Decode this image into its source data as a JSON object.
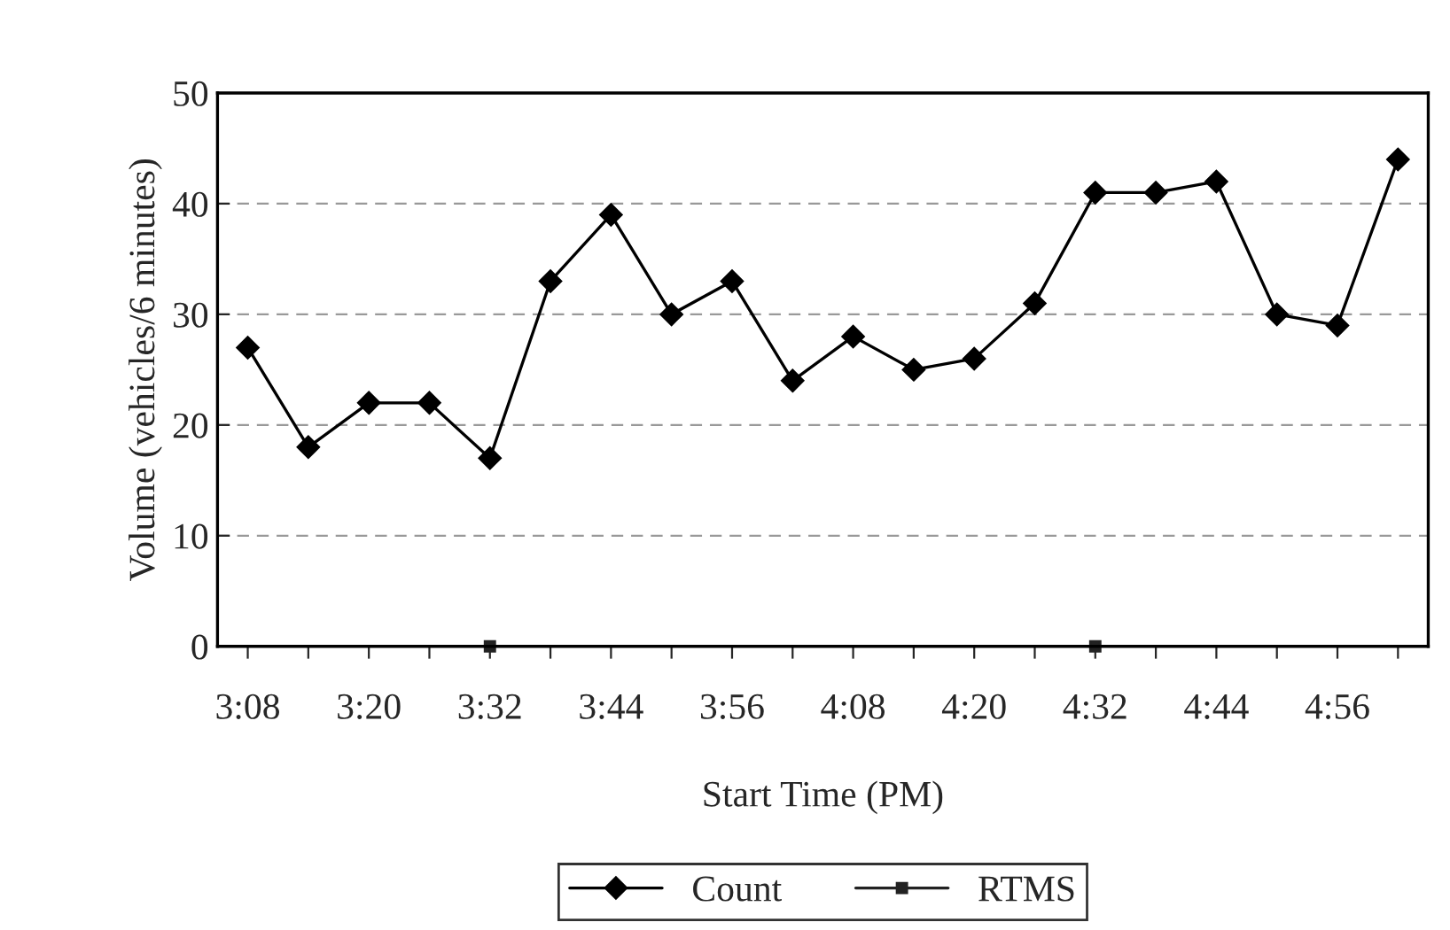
{
  "chart_data": {
    "type": "line",
    "xlabel": "Start Time (PM)",
    "ylabel": "Volume (vehicles/6 minutes)",
    "categories": [
      "3:08",
      null,
      "3:20",
      null,
      "3:32",
      null,
      "3:44",
      null,
      "3:56",
      null,
      "4:08",
      null,
      "4:20",
      null,
      "4:32",
      null,
      "4:44",
      null,
      "4:56",
      null
    ],
    "series": [
      {
        "name": "Count",
        "color": "#000000",
        "marker": "diamond",
        "values": [
          27,
          18,
          22,
          22,
          17,
          33,
          39,
          30,
          33,
          24,
          28,
          25,
          26,
          31,
          41,
          41,
          42,
          30,
          29,
          44
        ]
      },
      {
        "name": "RTMS",
        "color": "#222222",
        "marker": "square",
        "values": [
          null,
          null,
          null,
          null,
          0,
          null,
          null,
          null,
          null,
          null,
          null,
          null,
          null,
          null,
          0,
          null,
          null,
          null,
          null,
          null
        ]
      }
    ],
    "ylim": [
      0,
      50
    ],
    "yticks": [
      0,
      10,
      20,
      30,
      40,
      50
    ],
    "grid": "y",
    "legend": "bottom",
    "line_style": "solid"
  }
}
